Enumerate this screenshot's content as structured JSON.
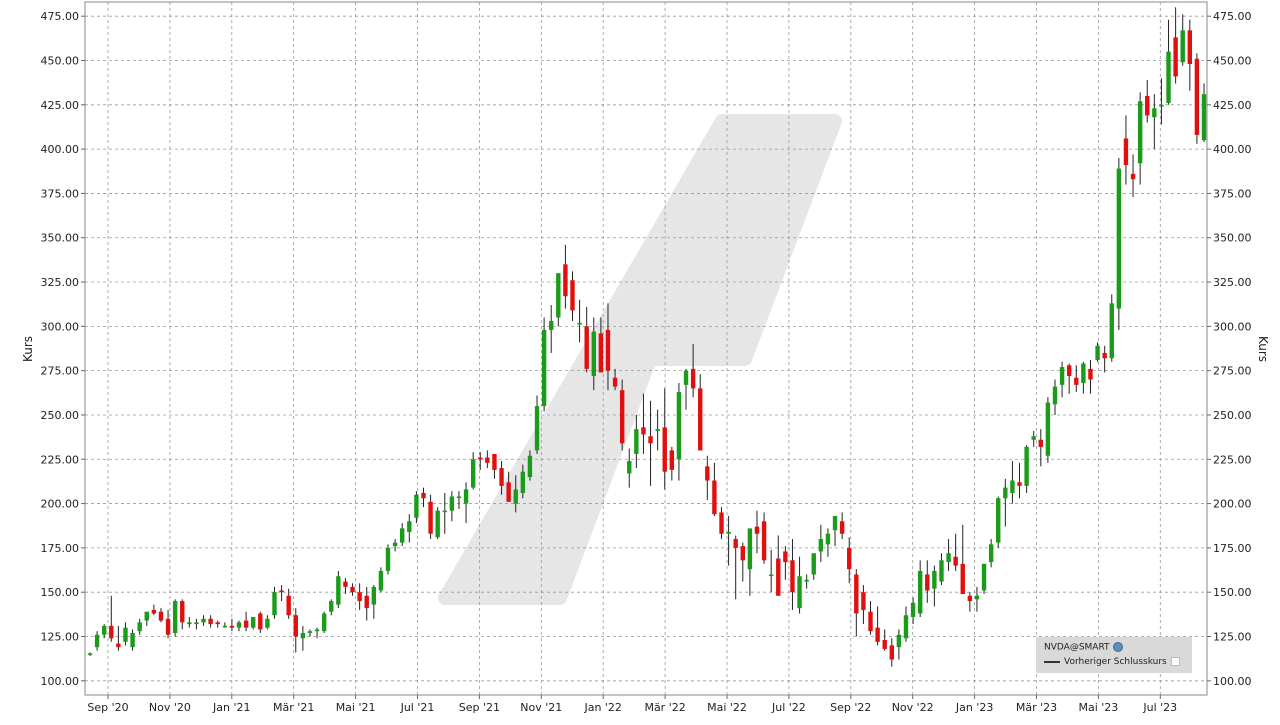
{
  "chart_data": {
    "type": "candlestick",
    "ylabel_left": "Kurs",
    "ylabel_right": "Kurs",
    "ylim": [
      92,
      483
    ],
    "y_ticks": [
      "100.00",
      "125.00",
      "150.00",
      "175.00",
      "200.00",
      "225.00",
      "250.00",
      "275.00",
      "300.00",
      "325.00",
      "350.00",
      "375.00",
      "400.00",
      "425.00",
      "450.00",
      "475.00"
    ],
    "x_ticks": [
      "Sep '20",
      "Nov '20",
      "Jan '21",
      "Mär '21",
      "Mai '21",
      "Jul '21",
      "Sep '21",
      "Nov '21",
      "Jan '22",
      "Mär '22",
      "Mai '22",
      "Jul '22",
      "Sep '22",
      "Nov '22",
      "Jan '23",
      "Mär '23",
      "Mai '23",
      "Jul '23"
    ],
    "grid": true,
    "colors": {
      "up": "#1a9c1a",
      "down": "#e01010",
      "grid": "#9a9a9a",
      "watermark": "#e6e6e6"
    },
    "legend": {
      "position": "bottom-right",
      "symbol": "NVDA@SMART",
      "previous_close_label": "Vorheriger Schlusskurs"
    },
    "candles": [
      {
        "o": 115,
        "h": 116,
        "l": 114,
        "c": 115.5
      },
      {
        "o": 119,
        "h": 128,
        "l": 117,
        "c": 126
      },
      {
        "o": 126,
        "h": 132,
        "l": 124,
        "c": 131
      },
      {
        "o": 131,
        "h": 148,
        "l": 122,
        "c": 124
      },
      {
        "o": 121,
        "h": 131,
        "l": 117,
        "c": 119
      },
      {
        "o": 122,
        "h": 133,
        "l": 120,
        "c": 130
      },
      {
        "o": 119,
        "h": 129,
        "l": 117,
        "c": 127
      },
      {
        "o": 128,
        "h": 135,
        "l": 126,
        "c": 133
      },
      {
        "o": 134,
        "h": 138,
        "l": 131,
        "c": 139
      },
      {
        "o": 140,
        "h": 143,
        "l": 137,
        "c": 138
      },
      {
        "o": 139,
        "h": 141,
        "l": 133,
        "c": 134
      },
      {
        "o": 135,
        "h": 140,
        "l": 124,
        "c": 126
      },
      {
        "o": 127,
        "h": 146,
        "l": 125,
        "c": 145
      },
      {
        "o": 145,
        "h": 146,
        "l": 129,
        "c": 133
      },
      {
        "o": 132,
        "h": 136,
        "l": 130,
        "c": 133
      },
      {
        "o": 132,
        "h": 135,
        "l": 129,
        "c": 133
      },
      {
        "o": 133,
        "h": 137,
        "l": 131,
        "c": 135
      },
      {
        "o": 135,
        "h": 137,
        "l": 130,
        "c": 132
      },
      {
        "o": 133,
        "h": 134,
        "l": 130,
        "c": 132
      },
      {
        "o": 131,
        "h": 133,
        "l": 130,
        "c": 131
      },
      {
        "o": 131,
        "h": 135,
        "l": 128,
        "c": 130
      },
      {
        "o": 130,
        "h": 134,
        "l": 128,
        "c": 133
      },
      {
        "o": 134,
        "h": 139,
        "l": 128,
        "c": 130
      },
      {
        "o": 130,
        "h": 136,
        "l": 129,
        "c": 136
      },
      {
        "o": 138,
        "h": 139,
        "l": 127,
        "c": 129
      },
      {
        "o": 130,
        "h": 137,
        "l": 129,
        "c": 135
      },
      {
        "o": 137,
        "h": 153,
        "l": 135,
        "c": 150
      },
      {
        "o": 151,
        "h": 154,
        "l": 145,
        "c": 150
      },
      {
        "o": 148,
        "h": 152,
        "l": 135,
        "c": 137
      },
      {
        "o": 137,
        "h": 141,
        "l": 116,
        "c": 125
      },
      {
        "o": 124,
        "h": 131,
        "l": 117,
        "c": 127
      },
      {
        "o": 127,
        "h": 129,
        "l": 125,
        "c": 128
      },
      {
        "o": 128,
        "h": 130,
        "l": 124,
        "c": 129
      },
      {
        "o": 128,
        "h": 139,
        "l": 127,
        "c": 138
      },
      {
        "o": 139,
        "h": 146,
        "l": 137,
        "c": 145
      },
      {
        "o": 143,
        "h": 162,
        "l": 141,
        "c": 159
      },
      {
        "o": 156,
        "h": 158,
        "l": 149,
        "c": 153
      },
      {
        "o": 153,
        "h": 155,
        "l": 148,
        "c": 150
      },
      {
        "o": 150,
        "h": 155,
        "l": 140,
        "c": 145
      },
      {
        "o": 148,
        "h": 153,
        "l": 134,
        "c": 141
      },
      {
        "o": 143,
        "h": 154,
        "l": 135,
        "c": 153
      },
      {
        "o": 151,
        "h": 164,
        "l": 150,
        "c": 162
      },
      {
        "o": 162,
        "h": 177,
        "l": 160,
        "c": 175
      },
      {
        "o": 176,
        "h": 180,
        "l": 173,
        "c": 178
      },
      {
        "o": 178,
        "h": 189,
        "l": 176,
        "c": 186
      },
      {
        "o": 184,
        "h": 194,
        "l": 178,
        "c": 190
      },
      {
        "o": 192,
        "h": 207,
        "l": 189,
        "c": 205
      },
      {
        "o": 206,
        "h": 209,
        "l": 198,
        "c": 203
      },
      {
        "o": 201,
        "h": 205,
        "l": 180,
        "c": 183
      },
      {
        "o": 181,
        "h": 198,
        "l": 180,
        "c": 196
      },
      {
        "o": 196,
        "h": 206,
        "l": 183,
        "c": 196
      },
      {
        "o": 196,
        "h": 207,
        "l": 190,
        "c": 204
      },
      {
        "o": 204,
        "h": 207,
        "l": 197,
        "c": 204
      },
      {
        "o": 200,
        "h": 212,
        "l": 189,
        "c": 208
      },
      {
        "o": 209,
        "h": 229,
        "l": 208,
        "c": 225
      },
      {
        "o": 226,
        "h": 229,
        "l": 219,
        "c": 225
      },
      {
        "o": 226,
        "h": 230,
        "l": 220,
        "c": 223
      },
      {
        "o": 228,
        "h": 228,
        "l": 214,
        "c": 219
      },
      {
        "o": 220,
        "h": 224,
        "l": 205,
        "c": 210
      },
      {
        "o": 212,
        "h": 218,
        "l": 201,
        "c": 201
      },
      {
        "o": 200,
        "h": 216,
        "l": 195,
        "c": 208
      },
      {
        "o": 206,
        "h": 222,
        "l": 203,
        "c": 218
      },
      {
        "o": 215,
        "h": 230,
        "l": 213,
        "c": 227
      },
      {
        "o": 230,
        "h": 261,
        "l": 228,
        "c": 255
      },
      {
        "o": 255,
        "h": 305,
        "l": 252,
        "c": 298
      },
      {
        "o": 298,
        "h": 312,
        "l": 285,
        "c": 303
      },
      {
        "o": 305,
        "h": 330,
        "l": 300,
        "c": 330
      },
      {
        "o": 335,
        "h": 346,
        "l": 310,
        "c": 317
      },
      {
        "o": 326,
        "h": 331,
        "l": 303,
        "c": 309
      },
      {
        "o": 301,
        "h": 315,
        "l": 291,
        "c": 302
      },
      {
        "o": 300,
        "h": 311,
        "l": 274,
        "c": 276
      },
      {
        "o": 272,
        "h": 305,
        "l": 264,
        "c": 297
      },
      {
        "o": 296,
        "h": 305,
        "l": 275,
        "c": 274
      },
      {
        "o": 298,
        "h": 313,
        "l": 264,
        "c": 275
      },
      {
        "o": 271,
        "h": 276,
        "l": 264,
        "c": 266
      },
      {
        "o": 264,
        "h": 270,
        "l": 230,
        "c": 234
      },
      {
        "o": 217,
        "h": 231,
        "l": 209,
        "c": 224
      },
      {
        "o": 228,
        "h": 250,
        "l": 220,
        "c": 242
      },
      {
        "o": 243,
        "h": 262,
        "l": 228,
        "c": 239
      },
      {
        "o": 238,
        "h": 258,
        "l": 210,
        "c": 234
      },
      {
        "o": 241,
        "h": 253,
        "l": 230,
        "c": 242
      },
      {
        "o": 243,
        "h": 265,
        "l": 208,
        "c": 218
      },
      {
        "o": 230,
        "h": 232,
        "l": 213,
        "c": 219
      },
      {
        "o": 225,
        "h": 268,
        "l": 213,
        "c": 263
      },
      {
        "o": 267,
        "h": 276,
        "l": 253,
        "c": 275
      },
      {
        "o": 276,
        "h": 290,
        "l": 260,
        "c": 265
      },
      {
        "o": 265,
        "h": 273,
        "l": 230,
        "c": 230
      },
      {
        "o": 221,
        "h": 227,
        "l": 202,
        "c": 213
      },
      {
        "o": 213,
        "h": 223,
        "l": 193,
        "c": 194
      },
      {
        "o": 195,
        "h": 198,
        "l": 180,
        "c": 183
      },
      {
        "o": 183,
        "h": 193,
        "l": 165,
        "c": 184
      },
      {
        "o": 180,
        "h": 182,
        "l": 146,
        "c": 175
      },
      {
        "o": 176,
        "h": 178,
        "l": 156,
        "c": 168
      },
      {
        "o": 163,
        "h": 185,
        "l": 148,
        "c": 186
      },
      {
        "o": 187,
        "h": 196,
        "l": 172,
        "c": 183
      },
      {
        "o": 190,
        "h": 195,
        "l": 166,
        "c": 168
      },
      {
        "o": 160,
        "h": 174,
        "l": 150,
        "c": 160
      },
      {
        "o": 169,
        "h": 182,
        "l": 148,
        "c": 148
      },
      {
        "o": 173,
        "h": 176,
        "l": 157,
        "c": 167
      },
      {
        "o": 168,
        "h": 180,
        "l": 140,
        "c": 150
      },
      {
        "o": 141,
        "h": 170,
        "l": 138,
        "c": 159
      },
      {
        "o": 156,
        "h": 160,
        "l": 152,
        "c": 157
      },
      {
        "o": 160,
        "h": 171,
        "l": 157,
        "c": 172
      },
      {
        "o": 173,
        "h": 188,
        "l": 167,
        "c": 180
      },
      {
        "o": 177,
        "h": 186,
        "l": 170,
        "c": 183
      },
      {
        "o": 185,
        "h": 190,
        "l": 176,
        "c": 193
      },
      {
        "o": 190,
        "h": 195,
        "l": 180,
        "c": 183
      },
      {
        "o": 175,
        "h": 181,
        "l": 155,
        "c": 163
      },
      {
        "o": 160,
        "h": 163,
        "l": 125,
        "c": 138
      },
      {
        "o": 150,
        "h": 154,
        "l": 132,
        "c": 140
      },
      {
        "o": 139,
        "h": 145,
        "l": 126,
        "c": 128
      },
      {
        "o": 130,
        "h": 142,
        "l": 120,
        "c": 122
      },
      {
        "o": 123,
        "h": 129,
        "l": 117,
        "c": 118
      },
      {
        "o": 120,
        "h": 124,
        "l": 108,
        "c": 112
      },
      {
        "o": 119,
        "h": 129,
        "l": 112,
        "c": 126
      },
      {
        "o": 124,
        "h": 142,
        "l": 122,
        "c": 137
      },
      {
        "o": 136,
        "h": 147,
        "l": 132,
        "c": 144
      },
      {
        "o": 138,
        "h": 168,
        "l": 136,
        "c": 162
      },
      {
        "o": 160,
        "h": 168,
        "l": 144,
        "c": 151
      },
      {
        "o": 152,
        "h": 165,
        "l": 142,
        "c": 162
      },
      {
        "o": 156,
        "h": 172,
        "l": 154,
        "c": 168
      },
      {
        "o": 167,
        "h": 180,
        "l": 162,
        "c": 172
      },
      {
        "o": 170,
        "h": 183,
        "l": 162,
        "c": 165
      },
      {
        "o": 166,
        "h": 188,
        "l": 151,
        "c": 149
      },
      {
        "o": 148,
        "h": 150,
        "l": 139,
        "c": 145
      },
      {
        "o": 146,
        "h": 153,
        "l": 139,
        "c": 148
      },
      {
        "o": 151,
        "h": 166,
        "l": 149,
        "c": 166
      },
      {
        "o": 167,
        "h": 180,
        "l": 164,
        "c": 177
      },
      {
        "o": 178,
        "h": 204,
        "l": 175,
        "c": 203
      },
      {
        "o": 203,
        "h": 214,
        "l": 187,
        "c": 209
      },
      {
        "o": 206,
        "h": 224,
        "l": 200,
        "c": 213
      },
      {
        "o": 212,
        "h": 223,
        "l": 203,
        "c": 210
      },
      {
        "o": 210,
        "h": 233,
        "l": 206,
        "c": 232
      },
      {
        "o": 236,
        "h": 241,
        "l": 232,
        "c": 238
      },
      {
        "o": 236,
        "h": 242,
        "l": 221,
        "c": 232
      },
      {
        "o": 227,
        "h": 260,
        "l": 223,
        "c": 257
      },
      {
        "o": 256,
        "h": 270,
        "l": 250,
        "c": 266
      },
      {
        "o": 267,
        "h": 280,
        "l": 260,
        "c": 277
      },
      {
        "o": 278,
        "h": 279,
        "l": 262,
        "c": 272
      },
      {
        "o": 271,
        "h": 278,
        "l": 263,
        "c": 267
      },
      {
        "o": 268,
        "h": 280,
        "l": 262,
        "c": 279
      },
      {
        "o": 276,
        "h": 281,
        "l": 262,
        "c": 270
      },
      {
        "o": 281,
        "h": 291,
        "l": 280,
        "c": 289
      },
      {
        "o": 285,
        "h": 289,
        "l": 274,
        "c": 282
      },
      {
        "o": 282,
        "h": 318,
        "l": 280,
        "c": 313
      },
      {
        "o": 310,
        "h": 395,
        "l": 298,
        "c": 389
      },
      {
        "o": 406,
        "h": 419,
        "l": 380,
        "c": 391
      },
      {
        "o": 386,
        "h": 397,
        "l": 373,
        "c": 383
      },
      {
        "o": 392,
        "h": 432,
        "l": 380,
        "c": 427
      },
      {
        "o": 430,
        "h": 439,
        "l": 415,
        "c": 419
      },
      {
        "o": 418,
        "h": 431,
        "l": 400,
        "c": 423
      },
      {
        "o": 424,
        "h": 440,
        "l": 414,
        "c": 425
      },
      {
        "o": 426,
        "h": 473,
        "l": 425,
        "c": 455
      },
      {
        "o": 463,
        "h": 480,
        "l": 437,
        "c": 441
      },
      {
        "o": 449,
        "h": 476,
        "l": 447,
        "c": 467
      },
      {
        "o": 467,
        "h": 473,
        "l": 433,
        "c": 448
      },
      {
        "o": 451,
        "h": 454,
        "l": 403,
        "c": 408
      },
      {
        "o": 405,
        "h": 437,
        "l": 404,
        "c": 431
      }
    ]
  }
}
